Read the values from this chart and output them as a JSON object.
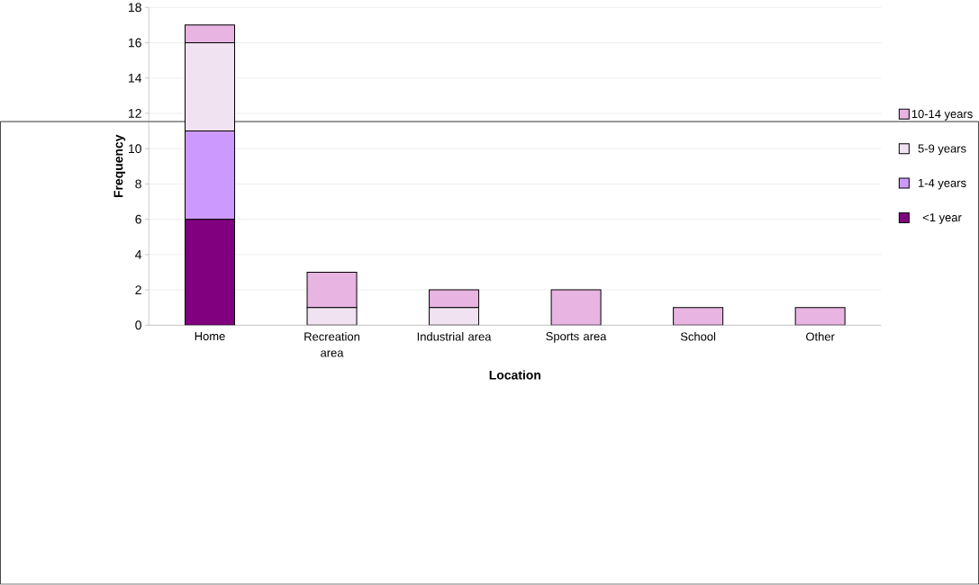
{
  "chart_data": {
    "type": "bar",
    "stacked": true,
    "xlabel": "Location",
    "ylabel": "Frequency",
    "categories": [
      "Home",
      "Recreation area",
      "Industrial area",
      "Sports area",
      "School",
      "Other"
    ],
    "series": [
      {
        "name": "<1 year",
        "color": "#800080",
        "values": [
          6,
          0,
          0,
          0,
          0,
          0
        ]
      },
      {
        "name": "1-4 years",
        "color": "#cc99ff",
        "values": [
          5,
          0,
          0,
          0,
          0,
          0
        ]
      },
      {
        "name": "5-9 years",
        "color": "#f0e2f0",
        "values": [
          5,
          1,
          1,
          0,
          0,
          0
        ]
      },
      {
        "name": "10-14 years",
        "color": "#e8b4e2",
        "values": [
          1,
          2,
          1,
          2,
          1,
          1
        ]
      }
    ],
    "ylim": [
      0,
      18
    ],
    "yticks": [
      0,
      2,
      4,
      6,
      8,
      10,
      12,
      14,
      16,
      18
    ],
    "grid": "y",
    "legend": "right"
  }
}
